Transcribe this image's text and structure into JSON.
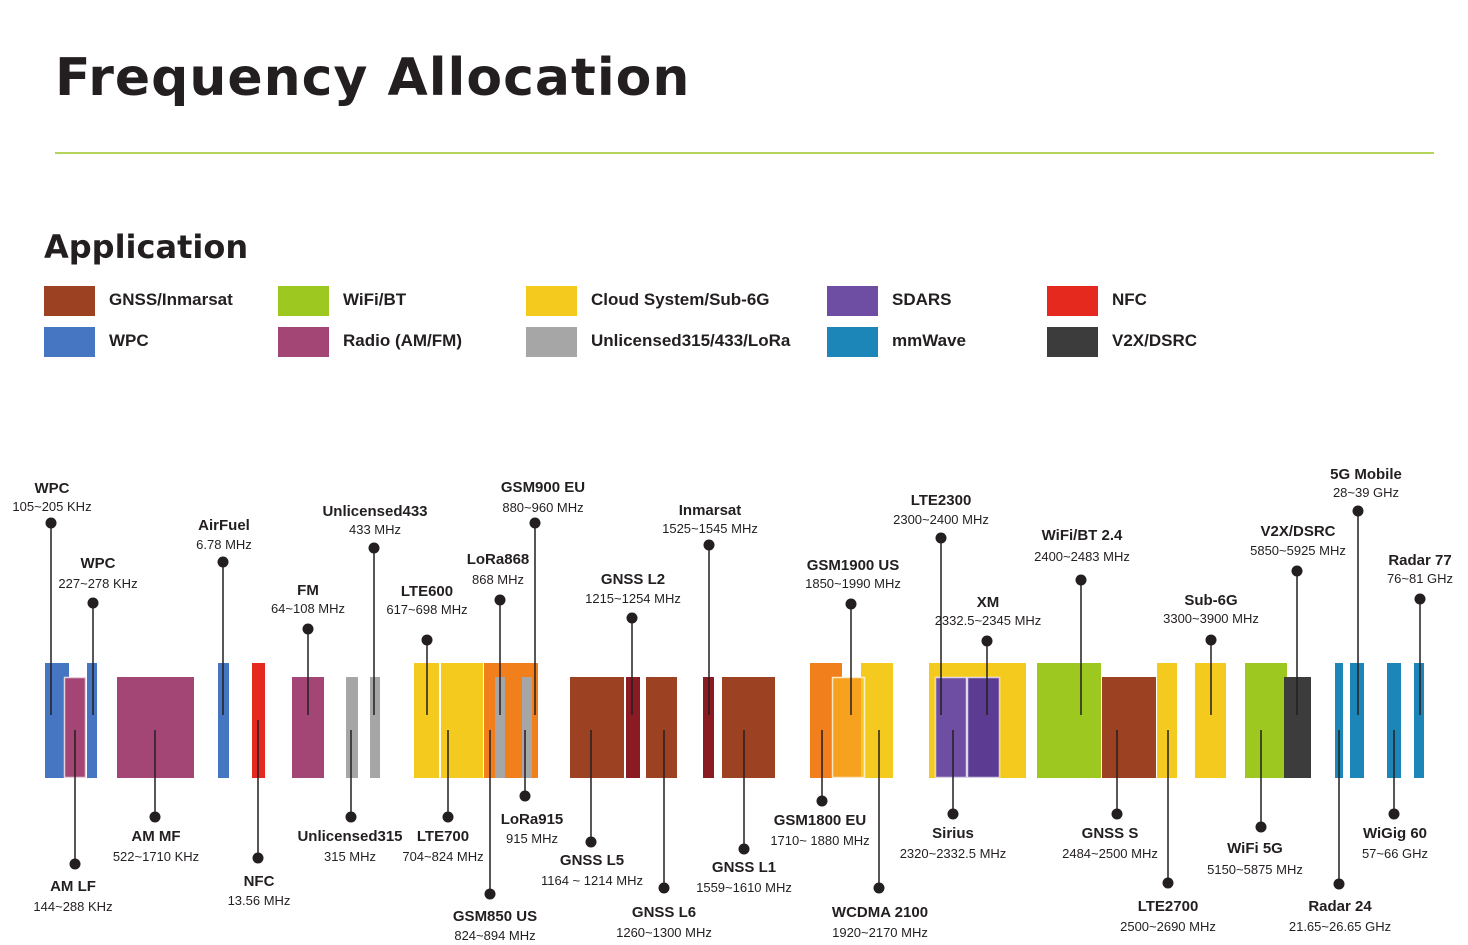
{
  "title": "Frequency Allocation",
  "section_heading": "Application",
  "colors": {
    "gnss": "#9c4222",
    "gnss_dark": "#8a1b23",
    "wifi": "#9dc81f",
    "cloud": "#f5ca1f",
    "cloud_orange": "#f07f1c",
    "cloud_orange2": "#f6a21e",
    "sdars": "#6e4ea2",
    "sdars_dark": "#5b3c92",
    "nfc": "#e6291e",
    "wpc": "#4675c2",
    "radio": "#a34575",
    "unlicensed": "#a6a6a6",
    "mmwave": "#1d86b8",
    "v2x": "#3c3c3c"
  },
  "legend": [
    {
      "label": "GNSS/Inmarsat",
      "color": "#9c4222"
    },
    {
      "label": "WiFi/BT",
      "color": "#9dc81f"
    },
    {
      "label": "Cloud System/Sub-6G",
      "color": "#f5ca1f"
    },
    {
      "label": "SDARS",
      "color": "#6e4ea2"
    },
    {
      "label": "NFC",
      "color": "#e6291e"
    },
    {
      "label": "WPC",
      "color": "#4675c2"
    },
    {
      "label": "Radio (AM/FM)",
      "color": "#a34575"
    },
    {
      "label": "Unlicensed315/433/LoRa",
      "color": "#a6a6a6"
    },
    {
      "label": "mmWave",
      "color": "#1d86b8"
    },
    {
      "label": "V2X/DSRC",
      "color": "#3c3c3c"
    }
  ],
  "bands": [
    {
      "name": "WPC",
      "range": "105~205 KHz"
    },
    {
      "name": "WPC",
      "range": "227~278 KHz"
    },
    {
      "name": "AM LF",
      "range": "144~288 KHz"
    },
    {
      "name": "AM MF",
      "range": "522~1710 KHz"
    },
    {
      "name": "AirFuel",
      "range": "6.78 MHz"
    },
    {
      "name": "NFC",
      "range": "13.56 MHz"
    },
    {
      "name": "FM",
      "range": "64~108 MHz"
    },
    {
      "name": "Unlicensed315",
      "range": "315 MHz"
    },
    {
      "name": "Unlicensed433",
      "range": "433 MHz"
    },
    {
      "name": "LTE600",
      "range": "617~698 MHz"
    },
    {
      "name": "LTE700",
      "range": "704~824 MHz"
    },
    {
      "name": "GSM850 US",
      "range": "824~894 MHz"
    },
    {
      "name": "LoRa868",
      "range": "868 MHz"
    },
    {
      "name": "LoRa915",
      "range": "915 MHz"
    },
    {
      "name": "GSM900 EU",
      "range": "880~960 MHz"
    },
    {
      "name": "GNSS L5",
      "range": "1164 ~ 1214 MHz"
    },
    {
      "name": "GNSS L2",
      "range": "1215~1254 MHz"
    },
    {
      "name": "GNSS L6",
      "range": "1260~1300 MHz"
    },
    {
      "name": "Inmarsat",
      "range": "1525~1545 MHz"
    },
    {
      "name": "GNSS L1",
      "range": "1559~1610 MHz"
    },
    {
      "name": "GSM1800 EU",
      "range": "1710~ 1880 MHz"
    },
    {
      "name": "GSM1900 US",
      "range": "1850~1990 MHz"
    },
    {
      "name": "WCDMA 2100",
      "range": "1920~2170 MHz"
    },
    {
      "name": "LTE2300",
      "range": "2300~2400 MHz"
    },
    {
      "name": "Sirius",
      "range": "2320~2332.5 MHz"
    },
    {
      "name": "XM",
      "range": "2332.5~2345 MHz"
    },
    {
      "name": "WiFi/BT 2.4",
      "range": "2400~2483 MHz"
    },
    {
      "name": "GNSS S",
      "range": "2484~2500 MHz"
    },
    {
      "name": "LTE2700",
      "range": "2500~2690 MHz"
    },
    {
      "name": "Sub-6G",
      "range": "3300~3900 MHz"
    },
    {
      "name": "WiFi 5G",
      "range": "5150~5875 MHz"
    },
    {
      "name": "V2X/DSRC",
      "range": "5850~5925 MHz"
    },
    {
      "name": "Radar 24",
      "range": "21.65~26.65 GHz"
    },
    {
      "name": "5G Mobile",
      "range": "28~39 GHz"
    },
    {
      "name": "WiGig 60",
      "range": "57~66 GHz"
    },
    {
      "name": "Radar 77",
      "range": "76~81 GHz"
    }
  ]
}
